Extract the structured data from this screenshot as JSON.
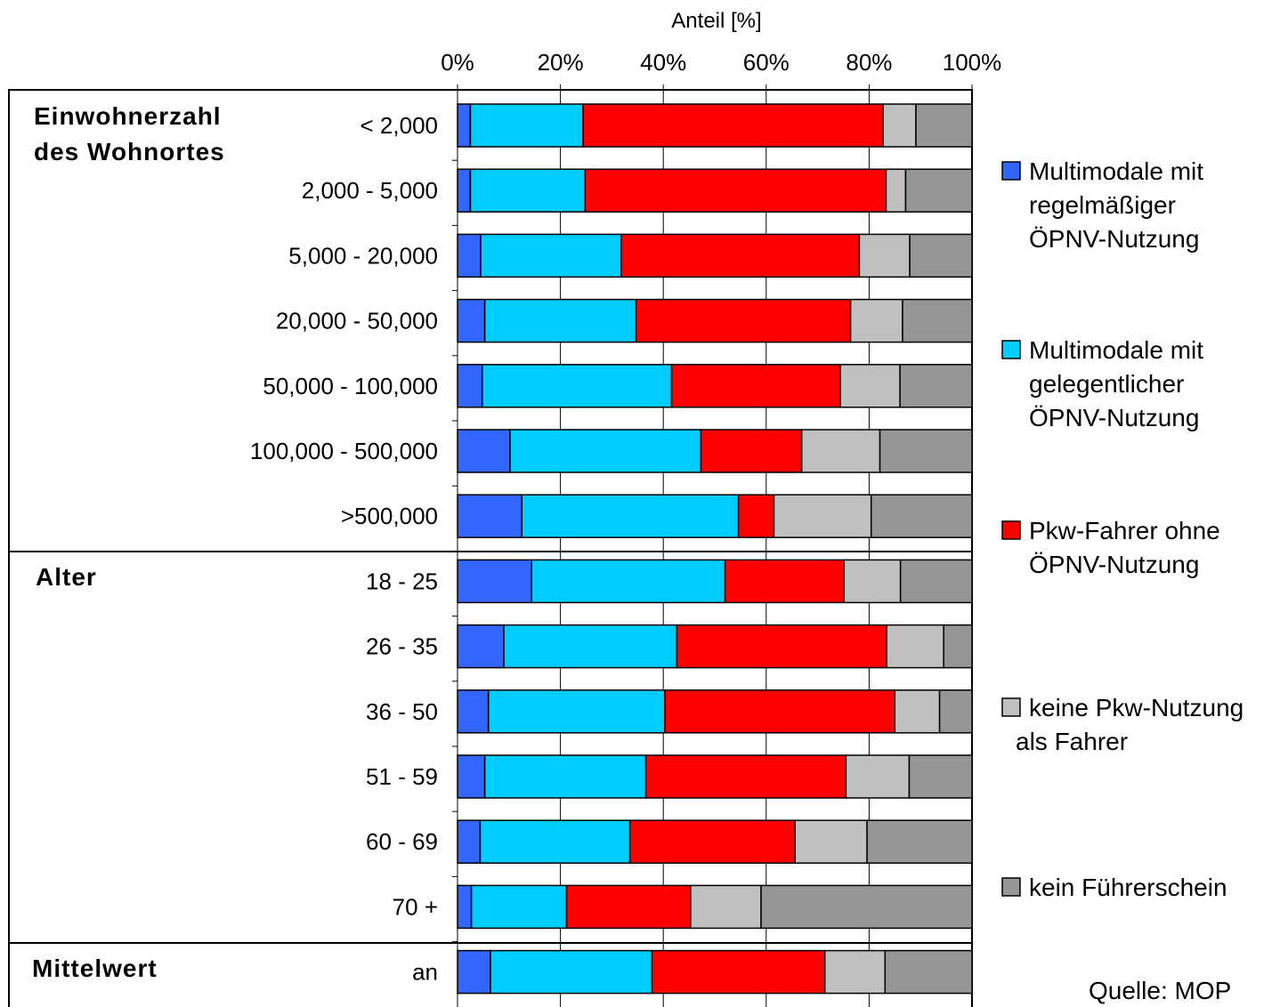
{
  "chart_data": {
    "type": "bar",
    "orientation": "horizontal",
    "stacked": "percent",
    "title": "",
    "xlabel": "Anteil [%]",
    "xlim": [
      0,
      100
    ],
    "x_ticks": [
      "0%",
      "20%",
      "40%",
      "60%",
      "80%",
      "100%"
    ],
    "grid": "vertical gridlines",
    "legend_position": "right",
    "groups": [
      {
        "label": "Einwohnerzahl des Wohnortes",
        "lines": [
          "Einwohnerzahl",
          "des Wohnortes"
        ],
        "categories": [
          "< 2,000",
          "2,000 - 5,000",
          "5,000 - 20,000",
          "20,000 - 50,000",
          "50,000 - 100,000",
          "100,000 - 500,000",
          ">500,000"
        ]
      },
      {
        "label": "Alter",
        "lines": [
          "Alter"
        ],
        "categories": [
          "18 - 25",
          "26 - 35",
          "36 - 50",
          "51 - 59",
          "60 - 69",
          "70 +"
        ]
      },
      {
        "label": "Mittelwert",
        "lines": [
          "Mittelwert"
        ],
        "categories": [
          "an"
        ]
      }
    ],
    "categories": [
      "< 2,000",
      "2,000 - 5,000",
      "5,000 - 20,000",
      "20,000 - 50,000",
      "50,000 - 100,000",
      "100,000 - 500,000",
      ">500,000",
      "18 - 25",
      "26 - 35",
      "36 - 50",
      "51 - 59",
      "60 - 69",
      "70 +",
      "an"
    ],
    "series": [
      {
        "name": "Multimodale mit regelmäßiger ÖPNV-Nutzung",
        "legend_lines": [
          "Multimodale mit",
          "regelmäßiger",
          "ÖPNV-Nutzung"
        ],
        "color": "#3366ff",
        "values": [
          2.5,
          2.5,
          4.5,
          5.3,
          4.8,
          10.2,
          12.5,
          14.4,
          9.0,
          6.0,
          5.3,
          4.4,
          2.7,
          6.4
        ]
      },
      {
        "name": "Multimodale mit gelegentlicher ÖPNV-Nutzung",
        "legend_lines": [
          "Multimodale mit",
          "gelegentlicher",
          "ÖPNV-Nutzung"
        ],
        "color": "#00ccff",
        "values": [
          21.9,
          22.3,
          27.3,
          29.4,
          36.8,
          37.1,
          42.1,
          37.6,
          33.6,
          34.3,
          31.3,
          29.1,
          18.5,
          31.4
        ]
      },
      {
        "name": "Pkw-Fahrer ohne ÖPNV-Nutzung",
        "legend_lines": [
          "Pkw-Fahrer ohne",
          "ÖPNV-Nutzung"
        ],
        "color": "#ff0000",
        "values": [
          58.3,
          58.5,
          46.3,
          41.7,
          32.8,
          19.6,
          6.9,
          23.1,
          40.8,
          44.7,
          38.9,
          32.1,
          24.1,
          33.6
        ]
      },
      {
        "name": "keine Pkw-Nutzung als Fahrer",
        "legend_lines": [
          "keine Pkw-Nutzung",
          "als Fahrer"
        ],
        "color": "#c0c0c0",
        "values": [
          6.4,
          3.8,
          9.8,
          10.1,
          11.6,
          15.2,
          18.9,
          11.0,
          11.1,
          8.7,
          12.3,
          14.0,
          13.7,
          11.7
        ]
      },
      {
        "name": "kein Führerschein",
        "legend_lines": [
          "kein Führerschein"
        ],
        "color": "#969696",
        "values": [
          10.9,
          12.9,
          12.1,
          13.5,
          14.0,
          17.9,
          19.6,
          13.9,
          5.5,
          6.3,
          12.2,
          20.4,
          41.0,
          16.9
        ]
      }
    ],
    "source_note": "Quelle: MOP"
  }
}
